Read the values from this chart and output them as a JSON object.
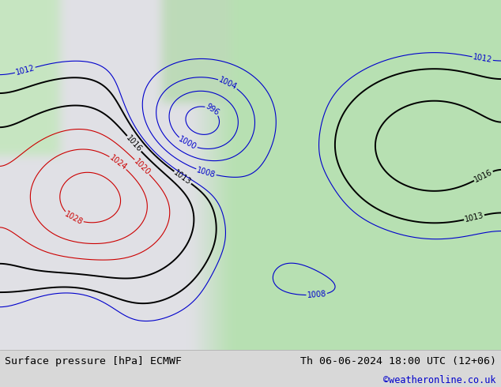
{
  "title_left": "Surface pressure [hPa] ECMWF",
  "title_right": "Th 06-06-2024 18:00 UTC (12+06)",
  "credit": "©weatheronline.co.uk",
  "credit_color": "#0000cc",
  "bottom_bar_color": "#d8d8d8",
  "bottom_text_color": "#000000",
  "figsize": [
    6.34,
    4.9
  ],
  "dpi": 100,
  "font_size_bottom": 9.5,
  "font_size_credit": 8.5,
  "contour_color_low": "#0000cc",
  "contour_color_mid": "#000000",
  "contour_color_high": "#cc0000",
  "contour_lw_thin": 0.8,
  "contour_lw_thick": 1.4,
  "label_fontsize": 7,
  "ocean_color": [
    0.88,
    0.88,
    0.9
  ],
  "land_color_main": [
    0.72,
    0.88,
    0.7
  ],
  "land_color_north": [
    0.78,
    0.9,
    0.76
  ],
  "mountain_color": [
    0.75,
    0.75,
    0.75
  ],
  "sea_light": [
    0.9,
    0.9,
    0.92
  ]
}
